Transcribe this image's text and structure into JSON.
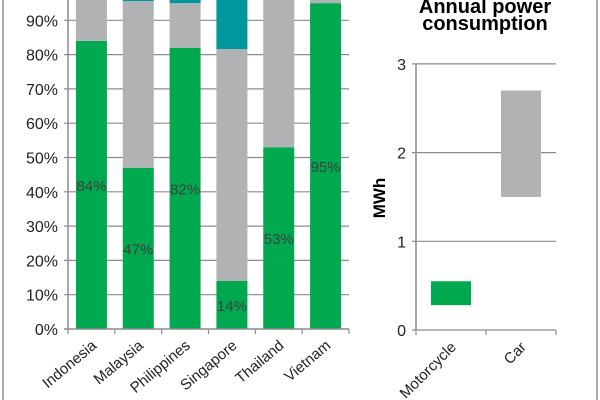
{
  "colors": {
    "green": "#00a94f",
    "grey": "#b1b2b4",
    "teal": "#00979d",
    "grid": "#8c8c8c",
    "label": "#404040"
  },
  "chart_data": [
    {
      "type": "bar",
      "stacked": true,
      "categories": [
        "Indonesia",
        "Malaysia",
        "Philippines",
        "Singapore",
        "Thailand",
        "Vietnam"
      ],
      "series": [
        {
          "values": [
            84,
            47,
            82,
            14,
            53,
            95
          ],
          "color": "#00a94f",
          "data_labels": [
            "84%",
            "47%",
            "82%",
            "14%",
            "53%",
            "95%"
          ]
        },
        {
          "values": [
            16,
            48.6,
            13,
            67.6,
            47,
            5
          ],
          "color": "#b1b2b4"
        },
        {
          "values": [
            0,
            4.4,
            5,
            18.4,
            0,
            0
          ],
          "color": "#00979d"
        }
      ],
      "yticks": [
        "0%",
        "10%",
        "20%",
        "30%",
        "40%",
        "50%",
        "60%",
        "70%",
        "80%",
        "90%"
      ],
      "ylim": [
        0,
        100
      ],
      "grid": true
    },
    {
      "type": "floating-bar",
      "title": "Annual power consumption",
      "ylabel": "MWh",
      "categories": [
        "Motorcycle",
        "Car"
      ],
      "ranges": [
        [
          0.28,
          0.55
        ],
        [
          1.5,
          2.7
        ]
      ],
      "colors": [
        "#00a94f",
        "#b1b2b4"
      ],
      "yticks": [
        "0",
        "1",
        "2",
        "3"
      ],
      "ylim": [
        0,
        3
      ],
      "grid": true
    }
  ]
}
